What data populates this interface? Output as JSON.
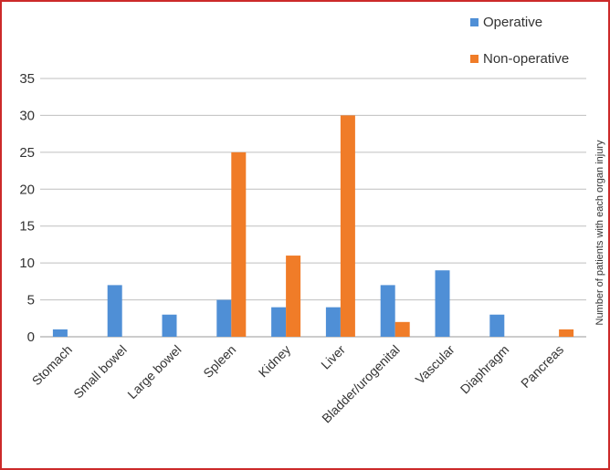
{
  "chart_data": {
    "type": "bar",
    "categories": [
      "Stomach",
      "Small bowel",
      "Large bowel",
      "Spleen",
      "Kidney",
      "Liver",
      "Bladder/urogenital",
      "Vascular",
      "Diaphragm",
      "Pancreas"
    ],
    "series": [
      {
        "name": "Operative",
        "color": "#4f8fd6",
        "values": [
          1,
          7,
          3,
          5,
          4,
          4,
          7,
          9,
          3,
          0
        ]
      },
      {
        "name": "Non-operative",
        "color": "#f07c28",
        "values": [
          0,
          0,
          0,
          25,
          11,
          30,
          2,
          0,
          0,
          1
        ]
      }
    ],
    "ylabel": "Number of patients with each organ injury",
    "ylim": [
      0,
      35
    ],
    "yticks": [
      0,
      5,
      10,
      15,
      20,
      25,
      30,
      35
    ],
    "grid": true,
    "legend_position": "top-right"
  },
  "colors": {
    "frame_border": "#cc2a2a",
    "gridline": "#bfbfbf"
  }
}
